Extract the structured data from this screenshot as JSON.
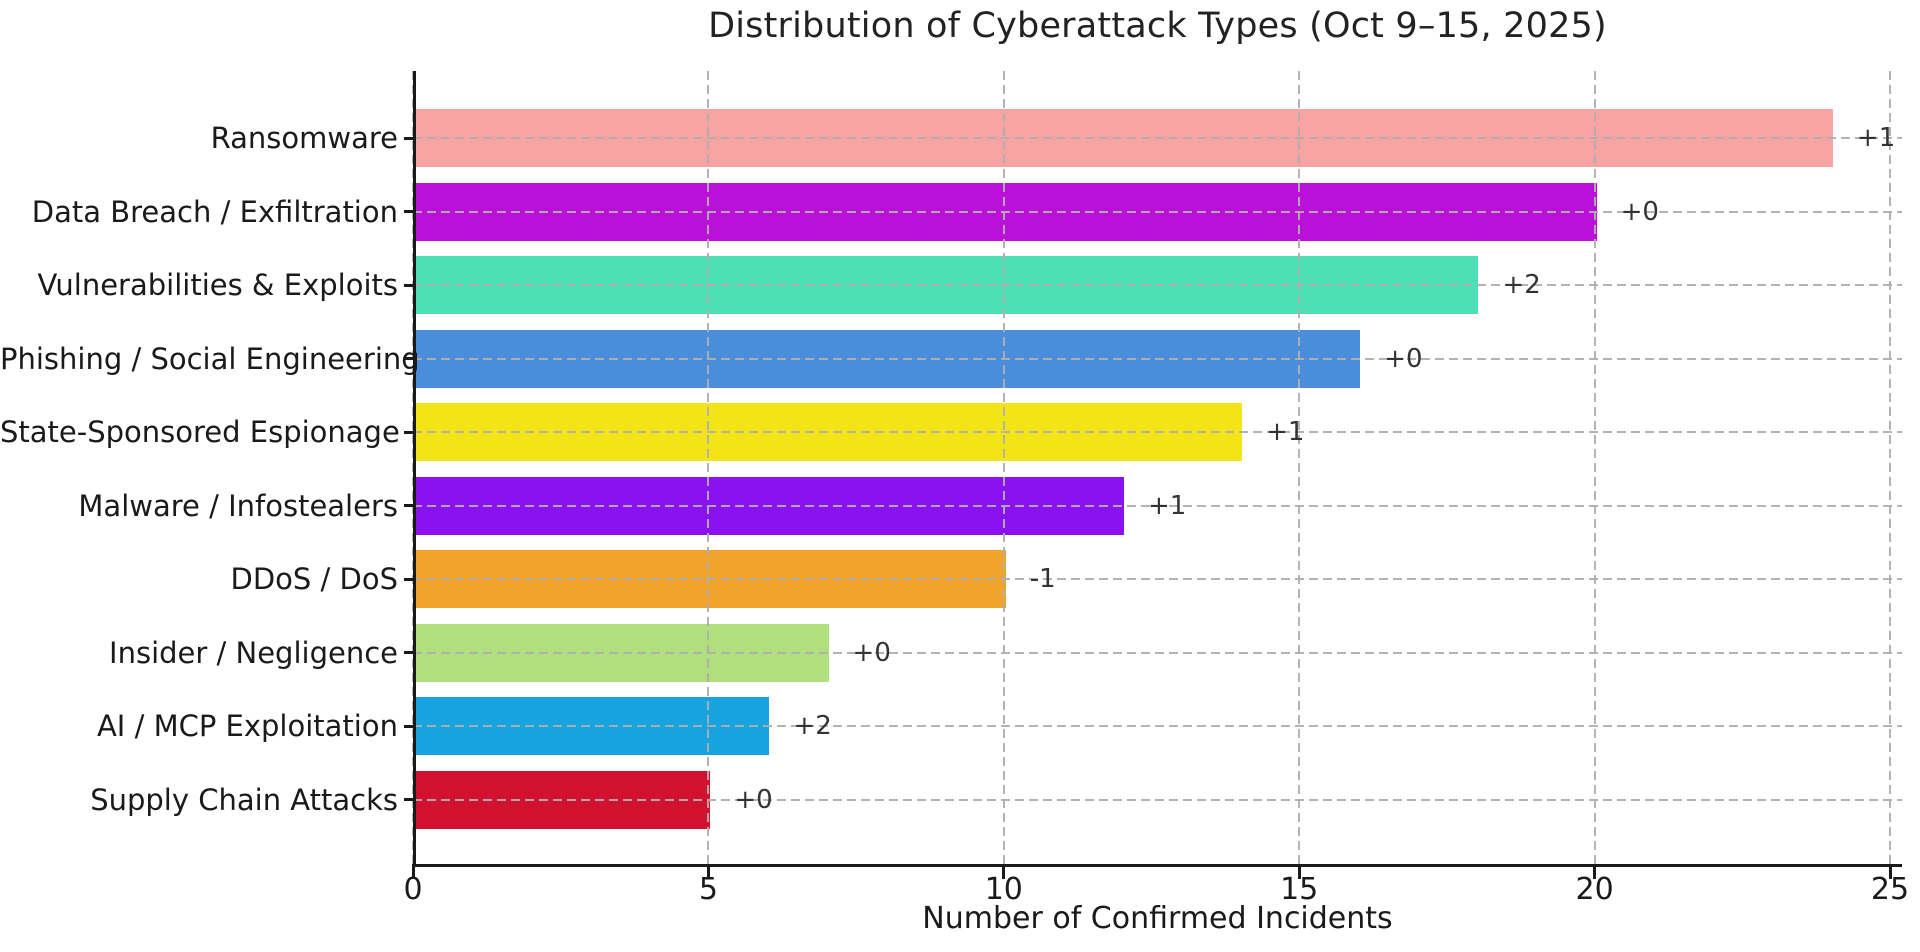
{
  "chart_data": {
    "type": "bar",
    "orientation": "horizontal",
    "title": "Distribution of Cyberattack Types (Oct 9–15, 2025)",
    "xlabel": "Number of Confirmed Incidents",
    "ylabel": "",
    "xlim": [
      0,
      25
    ],
    "xticks": [
      0,
      5,
      10,
      15,
      20,
      25
    ],
    "grid": "both-axes dashed gray, drawn over bars",
    "legend": "none",
    "background": "#ffffff",
    "axis_color": "#1a1a1a",
    "grid_color": "#b5b5b5",
    "annotation_color": "#333333",
    "categories": [
      "Ransomware",
      "Data Breach / Exfiltration",
      "Vulnerabilities & Exploits",
      "Phishing / Social Engineering",
      "State-Sponsored Espionage",
      "Malware / Infostealers",
      "DDoS / DoS",
      "Insider / Negligence",
      "AI / MCP Exploitation",
      "Supply Chain Attacks"
    ],
    "values": [
      24,
      20,
      18,
      16,
      14,
      12,
      10,
      7,
      6,
      5
    ],
    "annotations": [
      "+1",
      "+0",
      "+2",
      "+0",
      "+1",
      "+1",
      "-1",
      "+0",
      "+2",
      "+0"
    ],
    "bar_colors": [
      "#f9a4a4",
      "#ba10d8",
      "#4ddfb6",
      "#4a8edb",
      "#f3e418",
      "#8a12f0",
      "#f1a32b",
      "#b2df7d",
      "#16a3e0",
      "#d2112e"
    ]
  }
}
